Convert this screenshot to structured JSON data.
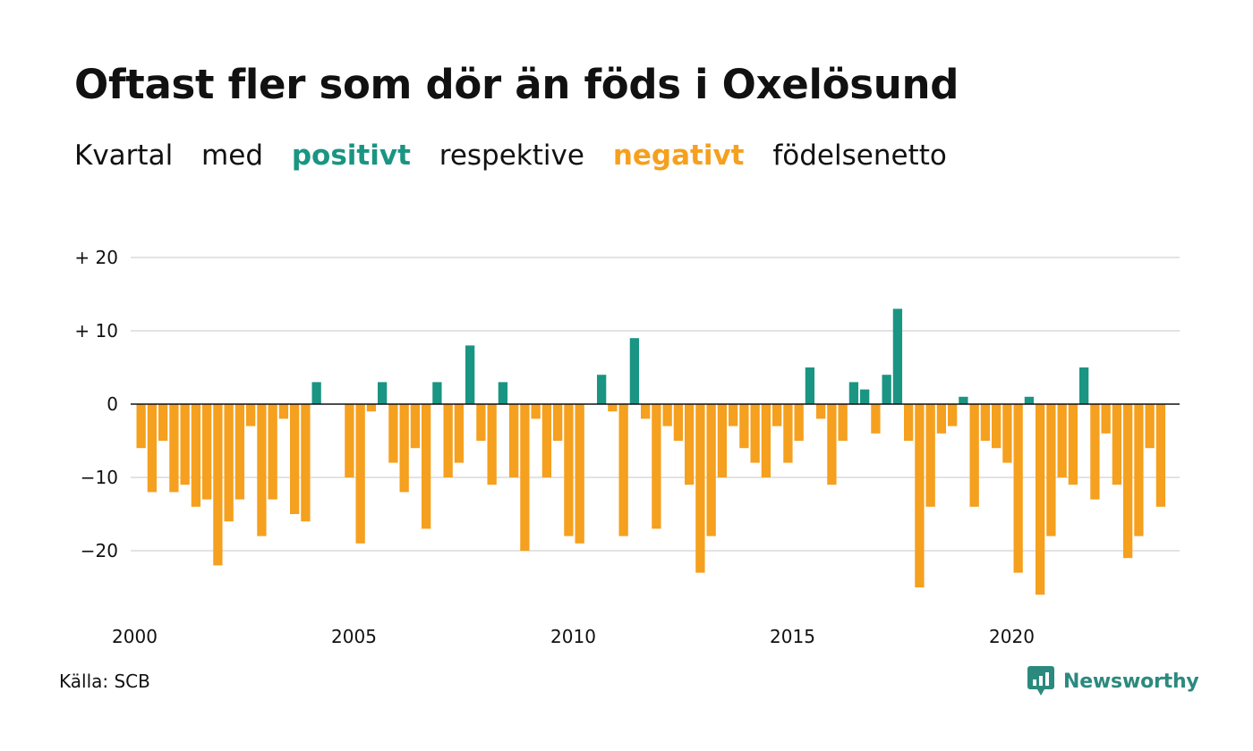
{
  "title": "Oftast fler som dör än föds i Oxelösund",
  "subtitle": {
    "w1": "Kvartal",
    "w2": "med",
    "positive": "positivt",
    "w3": "respektive",
    "negative": "negativt",
    "w4": "födelsenetto"
  },
  "colors": {
    "positive": "#1a9583",
    "negative": "#f5a01e",
    "grid": "#e3e3e3"
  },
  "source": "Källa: SCB",
  "logo": {
    "text": "Newsworthy",
    "icon": "newsworthy-chart-icon"
  },
  "chart_data": {
    "type": "bar",
    "x_start": "2000 Q1",
    "x_ticks": [
      {
        "value": 2000,
        "label": "2000"
      },
      {
        "value": 2005,
        "label": "2005"
      },
      {
        "value": 2010,
        "label": "2010"
      },
      {
        "value": 2015,
        "label": "2015"
      },
      {
        "value": 2020,
        "label": "2020"
      }
    ],
    "y_ticks": [
      {
        "value": 20,
        "label": "+ 20"
      },
      {
        "value": 10,
        "label": "+ 10"
      },
      {
        "value": 0,
        "label": "0"
      },
      {
        "value": -10,
        "label": "−10"
      },
      {
        "value": -20,
        "label": "−20"
      }
    ],
    "ylim": [
      -27,
      21
    ],
    "grid": true,
    "values": [
      -6,
      -12,
      -5,
      -12,
      -11,
      -14,
      -13,
      -22,
      -16,
      -13,
      -3,
      -18,
      -13,
      -2,
      -15,
      -16,
      3,
      0,
      0,
      -10,
      -19,
      -1,
      3,
      -8,
      -12,
      -6,
      -17,
      3,
      -10,
      -8,
      8,
      -5,
      -11,
      3,
      -10,
      -20,
      -2,
      -10,
      -5,
      -18,
      -19,
      0,
      4,
      -1,
      -18,
      9,
      -2,
      -17,
      -3,
      -5,
      -11,
      -23,
      -18,
      -10,
      -3,
      -6,
      -8,
      -10,
      -3,
      -8,
      -5,
      5,
      -2,
      -11,
      -5,
      3,
      2,
      -4,
      4,
      13,
      -5,
      -25,
      -14,
      -4,
      -3,
      1,
      -14,
      -5,
      -6,
      -8,
      -23,
      1,
      -26,
      -18,
      -10,
      -11,
      5,
      -13,
      -4,
      -11,
      -21,
      -18,
      -6,
      -14
    ]
  }
}
